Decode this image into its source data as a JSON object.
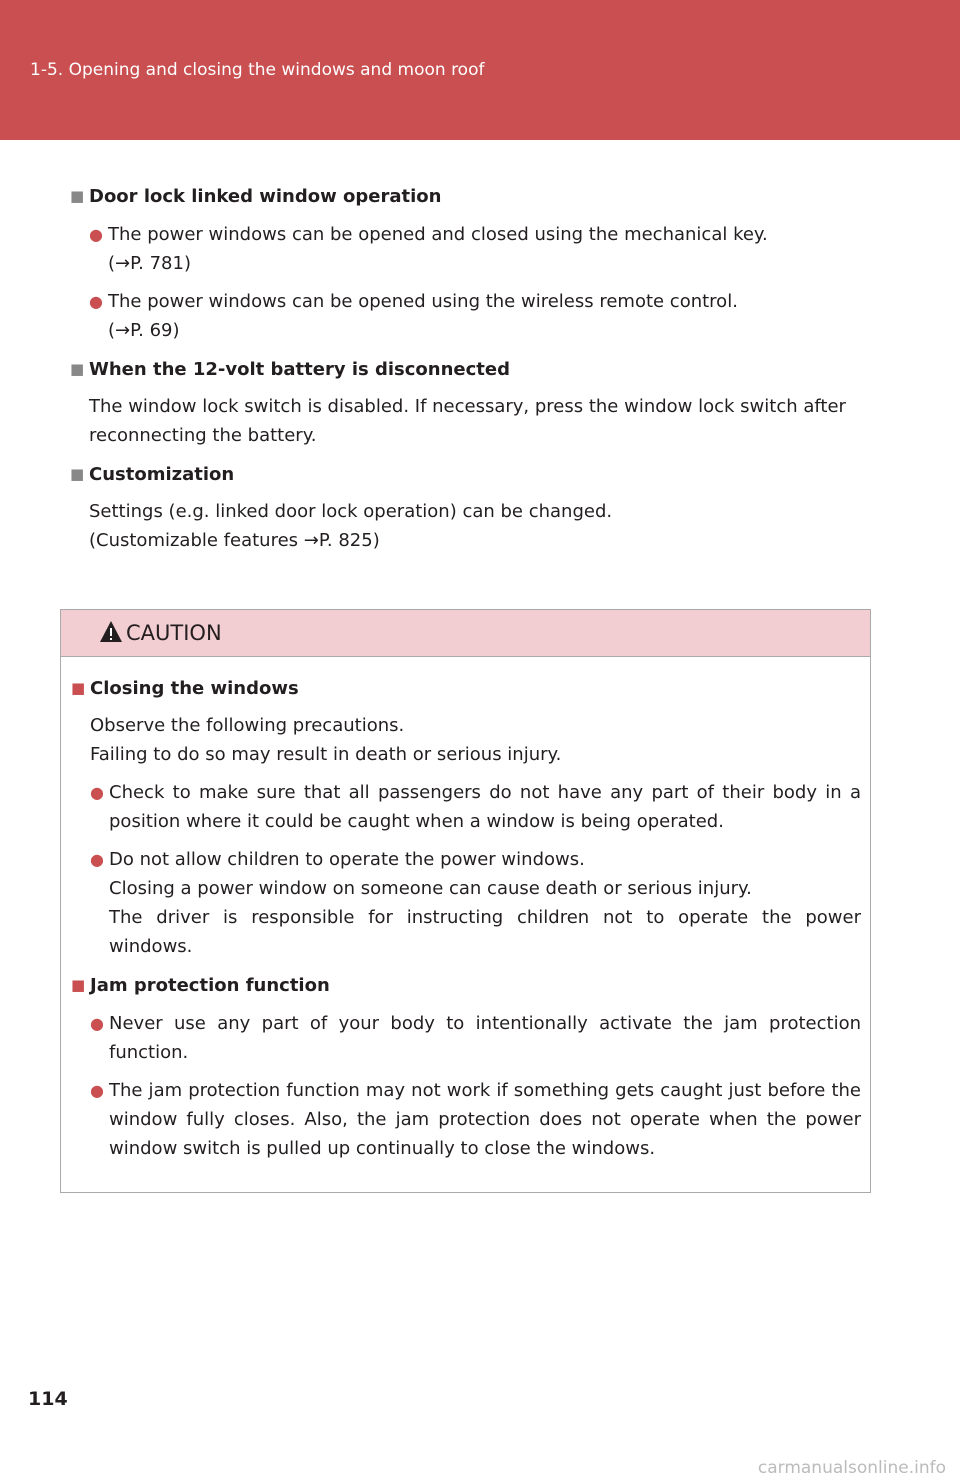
{
  "header": {
    "title": "1-5. Opening and closing the windows and moon roof"
  },
  "sections": [
    {
      "heading": "Door lock linked window operation",
      "bullets": [
        [
          "The power windows can be opened and closed using the mechanical key.",
          "(→P. 781)"
        ],
        [
          "The power windows can be opened using the wireless remote control.",
          "(→P. 69)"
        ]
      ]
    },
    {
      "heading": "When the 12-volt battery is disconnected",
      "paragraphs": [
        "The window lock switch is disabled. If necessary, press the window lock switch after reconnecting the battery."
      ]
    },
    {
      "heading": "Customization",
      "paragraphs": [
        "Settings (e.g. linked door lock operation) can be changed.",
        "(Customizable features →P. 825)"
      ]
    }
  ],
  "caution": {
    "title": "CAUTION",
    "sections": [
      {
        "heading": "Closing the windows",
        "paragraphs": [
          "Observe the following precautions.",
          "Failing to do so may result in death or serious injury."
        ],
        "bullets": [
          [
            "Check to make sure that all passengers do not have any part of their body in a position where it could be caught when a window is being operated."
          ],
          [
            "Do not allow children to operate the power windows.",
            "Closing a power window on someone can cause death or serious injury.",
            "The driver is responsible for instructing children not to operate the power windows."
          ]
        ]
      },
      {
        "heading": "Jam protection function",
        "bullets": [
          [
            "Never use any part of your body to intentionally activate the jam protection function."
          ],
          [
            "The jam protection function may not work if something gets caught just before the window fully closes. Also, the jam protection does not operate when the power window switch is pulled up continually to close the windows."
          ]
        ]
      }
    ]
  },
  "page_number": "114",
  "watermark": "carmanualsonline.info"
}
